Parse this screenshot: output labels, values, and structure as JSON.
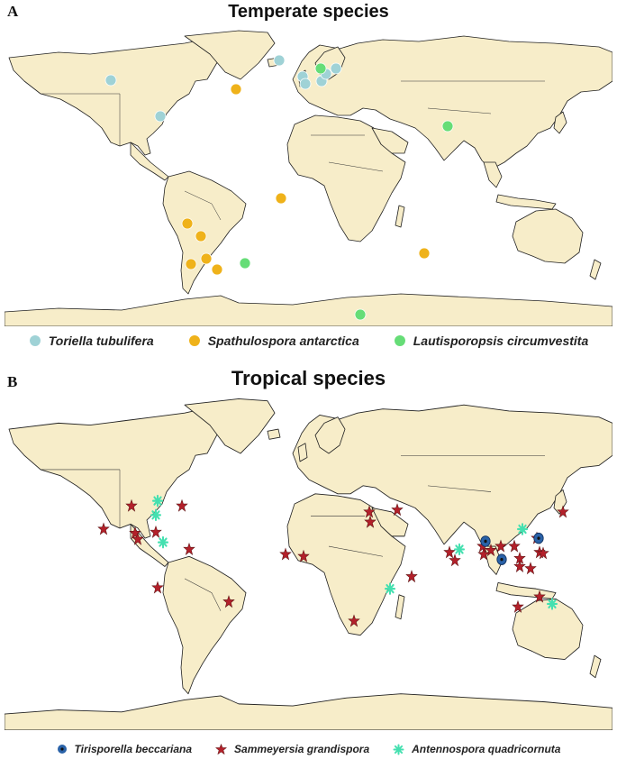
{
  "panel_a": {
    "letter": "A",
    "title": "Temperate species",
    "legend": [
      {
        "label": "Toriella tubulifera",
        "color": "#9fd2d6",
        "marker": "circle"
      },
      {
        "label": "Spathulospora antarctica",
        "color": "#efb21a",
        "marker": "circle"
      },
      {
        "label": "Lautisporopsis circumvestita",
        "color": "#66dd77",
        "marker": "circle"
      }
    ]
  },
  "panel_b": {
    "letter": "B",
    "title": "Tropical species",
    "legend": [
      {
        "label": "Tirisporella beccariana",
        "color": "#2a62a8",
        "marker": "ring-dot"
      },
      {
        "label": "Sammeyersia grandispora",
        "color": "#b3202a",
        "marker": "star"
      },
      {
        "label": "Antennospora quadricornuta",
        "color": "#45e0b0",
        "marker": "asterisk"
      }
    ]
  },
  "map_style": {
    "land": "#f7edc9",
    "ocean": "#ffffff",
    "border": "#222222"
  }
}
